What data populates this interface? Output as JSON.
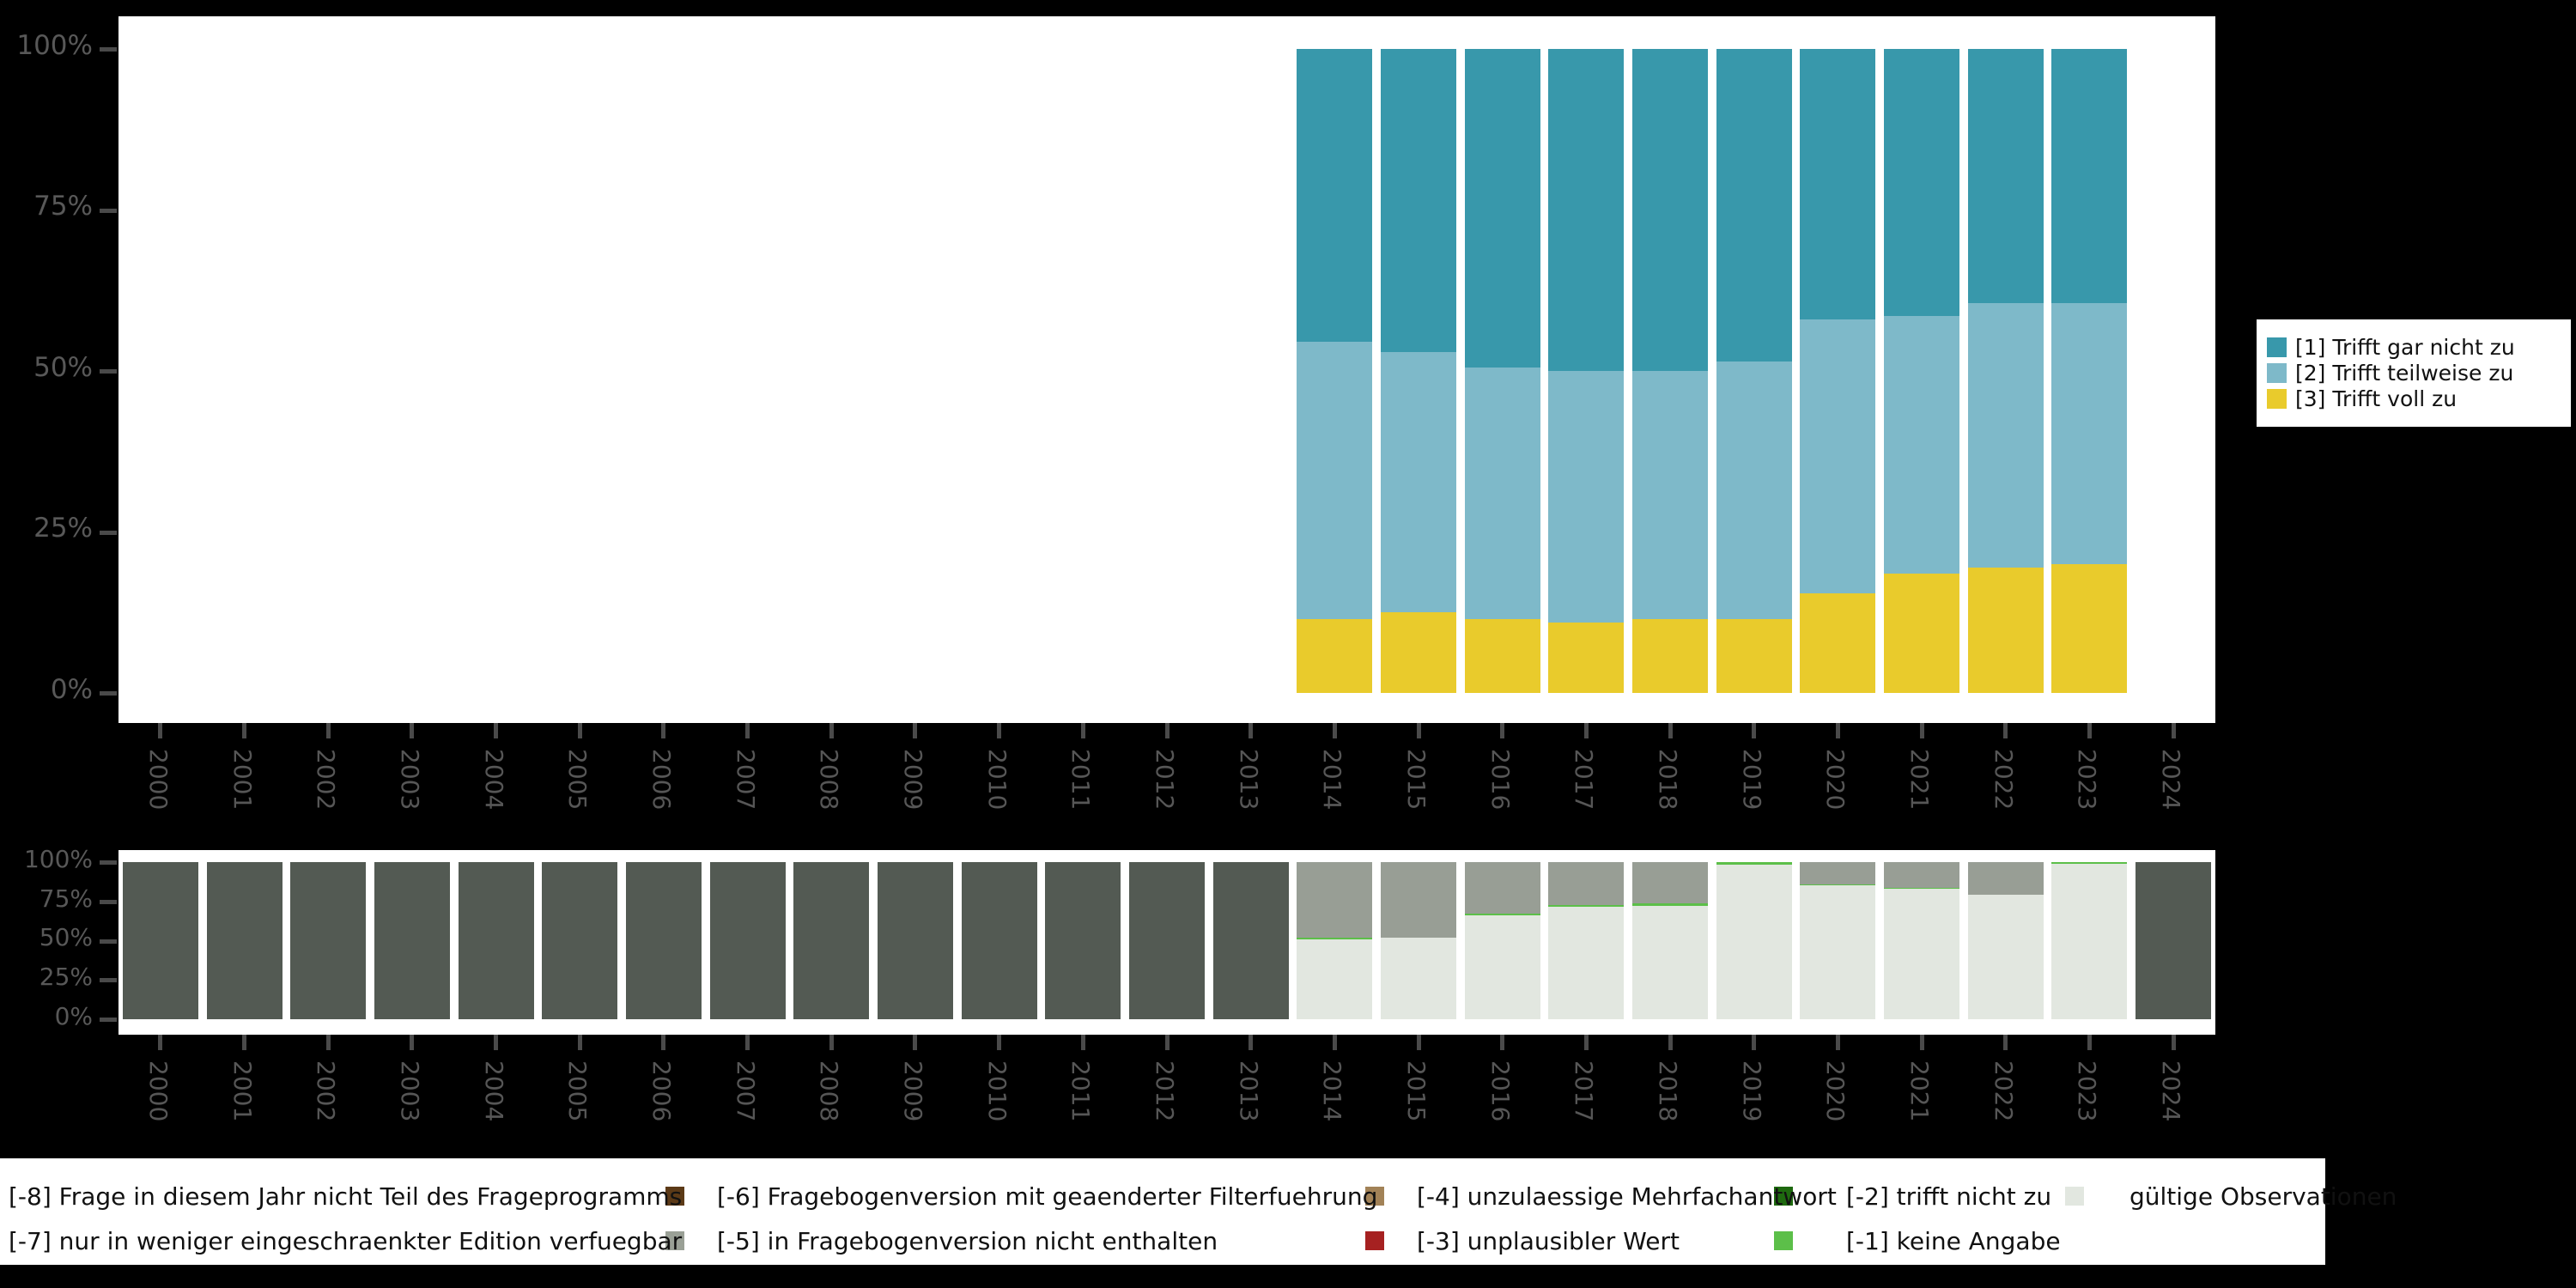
{
  "figure": {
    "background": "#000000",
    "panel_background": "#ffffff",
    "axis_text_color": "#585858",
    "tick_color": "#4a4a4a"
  },
  "axes": {
    "y_tick_labels": [
      "0%",
      "25%",
      "50%",
      "75%",
      "100%"
    ],
    "x_tick_labels": [
      "2000",
      "2001",
      "2002",
      "2003",
      "2004",
      "2005",
      "2006",
      "2007",
      "2008",
      "2009",
      "2010",
      "2011",
      "2012",
      "2013",
      "2014",
      "2015",
      "2016",
      "2017",
      "2018",
      "2019",
      "2020",
      "2021",
      "2022",
      "2023",
      "2024"
    ]
  },
  "chart_data": [
    {
      "type": "bar",
      "stacked": "percent",
      "title": "",
      "xlabel": "",
      "ylabel": "",
      "ylim": [
        0,
        100
      ],
      "grid": false,
      "legend_position": "right",
      "categories": [
        "2000",
        "2001",
        "2002",
        "2003",
        "2004",
        "2005",
        "2006",
        "2007",
        "2008",
        "2009",
        "2010",
        "2011",
        "2012",
        "2013",
        "2014",
        "2015",
        "2016",
        "2017",
        "2018",
        "2019",
        "2020",
        "2021",
        "2022",
        "2023",
        "2024"
      ],
      "series": [
        {
          "name": "[1] Trifft gar nicht zu",
          "color": "#3898ab",
          "values": [
            null,
            null,
            null,
            null,
            null,
            null,
            null,
            null,
            null,
            null,
            null,
            null,
            null,
            null,
            45.5,
            47,
            49.5,
            50,
            50,
            48.5,
            42,
            41.5,
            39.5,
            39.5,
            null
          ]
        },
        {
          "name": "[2] Trifft teilweise zu",
          "color": "#7eb9c9",
          "values": [
            null,
            null,
            null,
            null,
            null,
            null,
            null,
            null,
            null,
            null,
            null,
            null,
            null,
            null,
            43,
            40.5,
            39,
            39,
            38.5,
            40,
            42.5,
            40,
            41,
            40.5,
            null
          ]
        },
        {
          "name": "[3] Trifft voll zu",
          "color": "#e9cb2c",
          "values": [
            null,
            null,
            null,
            null,
            null,
            null,
            null,
            null,
            null,
            null,
            null,
            null,
            null,
            null,
            11.5,
            12.5,
            11.5,
            11,
            11.5,
            11.5,
            15.5,
            18.5,
            19.5,
            20,
            null
          ]
        }
      ],
      "stack_note": "last series is the bottom segment"
    },
    {
      "type": "bar",
      "stacked": "percent",
      "title": "",
      "xlabel": "",
      "ylabel": "",
      "ylim": [
        0,
        100
      ],
      "grid": false,
      "legend_position": "bottom",
      "categories": [
        "2000",
        "2001",
        "2002",
        "2003",
        "2004",
        "2005",
        "2006",
        "2007",
        "2008",
        "2009",
        "2010",
        "2011",
        "2012",
        "2013",
        "2014",
        "2015",
        "2016",
        "2017",
        "2018",
        "2019",
        "2020",
        "2021",
        "2022",
        "2023",
        "2024"
      ],
      "series": [
        {
          "name": "[-8] Frage in diesem Jahr nicht Teil des Frageprogramms",
          "color": "#535a53",
          "values": [
            100,
            100,
            100,
            100,
            100,
            100,
            100,
            100,
            100,
            100,
            100,
            100,
            100,
            100,
            0,
            0,
            0,
            0,
            0,
            0,
            0,
            0,
            0,
            0,
            100
          ]
        },
        {
          "name": "[-5] in Fragebogenversion nicht enthalten",
          "color": "#989e95",
          "values": [
            0,
            0,
            0,
            0,
            0,
            0,
            0,
            0,
            0,
            0,
            0,
            0,
            0,
            0,
            48,
            48,
            33,
            27.5,
            26,
            0,
            14,
            16.5,
            21,
            0,
            0
          ]
        },
        {
          "name": "[-1] keine Angabe",
          "color": "#5cbf49",
          "values": [
            0,
            0,
            0,
            0,
            0,
            0,
            0,
            0,
            0,
            0,
            0,
            0,
            0,
            0,
            1,
            0,
            1,
            1,
            2,
            1.5,
            1,
            0.5,
            0,
            1,
            0
          ]
        },
        {
          "name": "gültige Observationen",
          "color": "#e2e7e0",
          "values": [
            0,
            0,
            0,
            0,
            0,
            0,
            0,
            0,
            0,
            0,
            0,
            0,
            0,
            0,
            51,
            52,
            66,
            71.5,
            72,
            98.5,
            85,
            83,
            79,
            99,
            0
          ]
        }
      ],
      "stack_note": "last series is the bottom segment"
    }
  ],
  "legends": {
    "answers": {
      "entries": [
        {
          "label": "[1] Trifft gar nicht zu",
          "color": "#3898ab"
        },
        {
          "label": "[2] Trifft teilweise zu",
          "color": "#7eb9c9"
        },
        {
          "label": "[3] Trifft voll zu",
          "color": "#e9cb2c"
        }
      ]
    },
    "missing": {
      "columns": [
        [
          {
            "code": "-8",
            "label": "[-8] Frage in diesem Jahr nicht Teil des Frageprogramms",
            "color": null
          },
          {
            "code": "-7",
            "label": "[-7] nur in weniger eingeschraenkter Edition verfuegbar",
            "color": null
          }
        ],
        [
          {
            "code": "-6",
            "label": "[-6] Fragebogenversion mit geaenderter Filterfuehrung",
            "color": "#5c3a17"
          },
          {
            "code": "-5",
            "label": "[-5] in Fragebogenversion nicht enthalten",
            "color": "#9aa096"
          }
        ],
        [
          {
            "code": "-4",
            "label": "[-4] unzulaessige Mehrfachantwort",
            "color": "#a28257"
          },
          {
            "code": "-3",
            "label": "[-3] unplausibler Wert",
            "color": "#a62121"
          }
        ],
        [
          {
            "code": "-2",
            "label": "[-2] trifft nicht zu",
            "color": "#1e690f"
          },
          {
            "code": "-1",
            "label": "[-1] keine Angabe",
            "color": "#5cbf49"
          }
        ],
        [
          {
            "code": "valid",
            "label": "gültige Observationen",
            "color": "#e2e7e0"
          }
        ]
      ]
    }
  }
}
